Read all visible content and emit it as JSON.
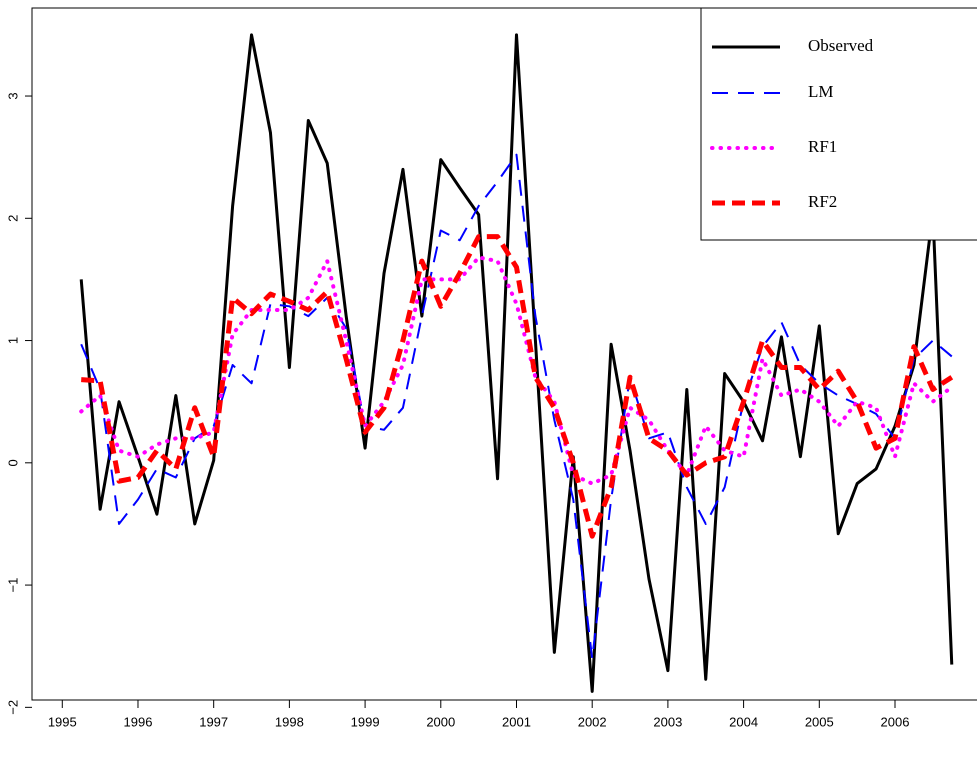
{
  "chart_data": {
    "type": "line",
    "x": [
      1995.25,
      1995.5,
      1995.75,
      1996,
      1996.25,
      1996.5,
      1996.75,
      1997,
      1997.25,
      1997.5,
      1997.75,
      1998,
      1998.25,
      1998.5,
      1998.75,
      1999,
      1999.25,
      1999.5,
      1999.75,
      2000,
      2000.25,
      2000.5,
      2000.75,
      2001,
      2001.25,
      2001.5,
      2001.75,
      2002,
      2002.25,
      2002.5,
      2002.75,
      2003,
      2003.25,
      2003.5,
      2003.75,
      2004,
      2004.25,
      2004.5,
      2004.75,
      2005,
      2005.25,
      2005.5,
      2005.75,
      2006,
      2006.25,
      2006.5,
      2006.75
    ],
    "series": [
      {
        "name": "Observed",
        "color": "#000000",
        "linestyle": "solid",
        "linewidth": 3,
        "values": [
          1.5,
          -0.38,
          0.5,
          0.05,
          -0.42,
          0.55,
          -0.5,
          0.02,
          2.1,
          3.5,
          2.7,
          0.78,
          2.8,
          2.45,
          1.2,
          0.12,
          1.55,
          2.4,
          1.2,
          2.48,
          2.25,
          2.03,
          -0.13,
          3.5,
          1.0,
          -1.55,
          0.05,
          -1.87,
          0.97,
          0.1,
          -0.95,
          -1.7,
          0.6,
          -1.77,
          0.73,
          0.5,
          0.18,
          1.03,
          0.05,
          1.12,
          -0.58,
          -0.17,
          -0.05,
          0.3,
          0.8,
          2.05,
          -1.65
        ]
      },
      {
        "name": "LM",
        "color": "#0000ff",
        "linestyle": "dashed",
        "linewidth": 2,
        "values": [
          0.97,
          0.6,
          -0.5,
          -0.3,
          -0.05,
          -0.12,
          0.2,
          0.3,
          0.8,
          0.65,
          1.3,
          1.28,
          1.2,
          1.35,
          1.1,
          0.3,
          0.27,
          0.45,
          1.2,
          1.9,
          1.82,
          2.1,
          2.3,
          2.52,
          1.2,
          0.35,
          -0.3,
          -1.6,
          -0.3,
          0.7,
          0.2,
          0.25,
          -0.2,
          -0.5,
          -0.2,
          0.5,
          0.95,
          1.15,
          0.8,
          0.65,
          0.55,
          0.48,
          0.4,
          0.2,
          0.85,
          1.0,
          0.87
        ]
      },
      {
        "name": "RF1",
        "color": "#ff00ff",
        "linestyle": "dotted",
        "linewidth": 4,
        "values": [
          0.42,
          0.55,
          0.1,
          0.05,
          0.15,
          0.2,
          0.2,
          0.25,
          1.05,
          1.25,
          1.25,
          1.25,
          1.35,
          1.65,
          1.0,
          0.3,
          0.5,
          0.8,
          1.5,
          1.5,
          1.5,
          1.68,
          1.65,
          1.3,
          0.7,
          0.5,
          -0.1,
          -0.17,
          -0.1,
          0.45,
          0.35,
          0.1,
          -0.1,
          0.3,
          0.1,
          0.05,
          0.85,
          0.55,
          0.6,
          0.5,
          0.3,
          0.5,
          0.45,
          0.05,
          0.65,
          0.5,
          0.62
        ]
      },
      {
        "name": "RF2",
        "color": "#ff0000",
        "linestyle": "dashed",
        "linewidth": 5,
        "values": [
          0.68,
          0.67,
          -0.15,
          -0.12,
          0.1,
          -0.05,
          0.45,
          0.05,
          1.35,
          1.22,
          1.38,
          1.32,
          1.25,
          1.4,
          0.85,
          0.25,
          0.45,
          1.0,
          1.65,
          1.28,
          1.55,
          1.85,
          1.85,
          1.6,
          0.7,
          0.45,
          0.0,
          -0.6,
          -0.2,
          0.7,
          0.2,
          0.1,
          -0.1,
          0.0,
          0.05,
          0.5,
          1.0,
          0.78,
          0.78,
          0.6,
          0.75,
          0.5,
          0.12,
          0.2,
          0.95,
          0.6,
          0.7
        ]
      }
    ],
    "xlim": [
      1994.6,
      2007.07
    ],
    "xticks": [
      1995,
      1996,
      1997,
      1998,
      1999,
      2000,
      2001,
      2002,
      2003,
      2004,
      2005,
      2006
    ],
    "ylim": [
      -1.94,
      3.72
    ],
    "yticks": [
      {
        "value": -2,
        "label": "−2"
      },
      {
        "value": -1,
        "label": "−1"
      },
      0,
      1,
      2,
      3
    ],
    "legend": "top-right"
  }
}
